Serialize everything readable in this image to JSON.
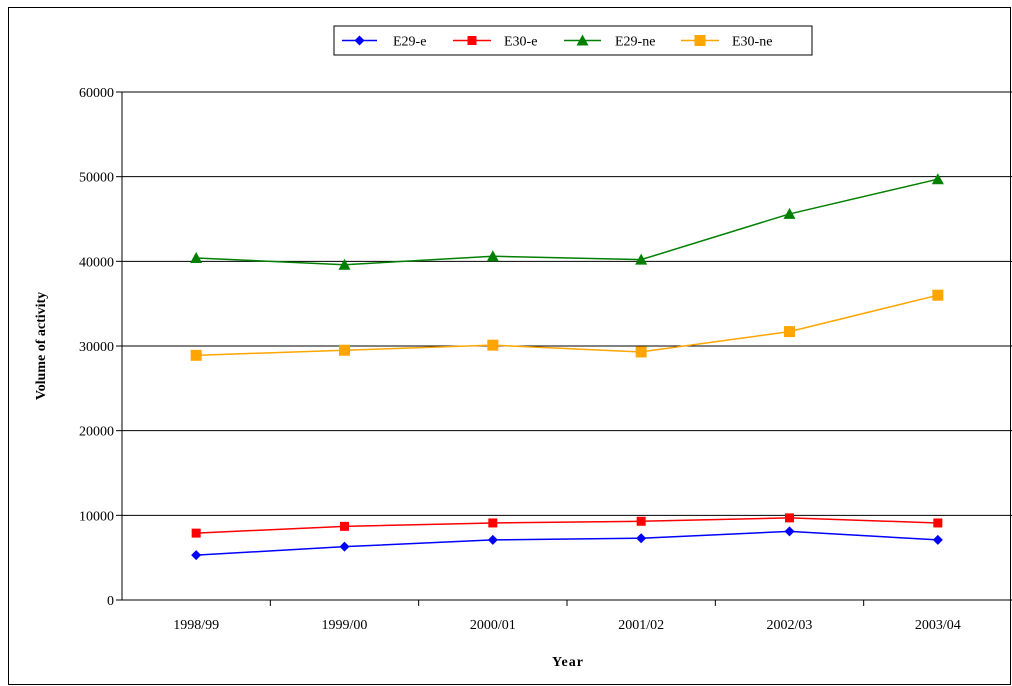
{
  "chart_data": {
    "type": "line",
    "title": "",
    "xlabel": "Year",
    "ylabel": "Volume of activity",
    "categories": [
      "1998/99",
      "1999/00",
      "2000/01",
      "2001/02",
      "2002/03",
      "2003/04"
    ],
    "ylim": [
      0,
      60000
    ],
    "yticks": [
      "0",
      "10000",
      "20000",
      "30000",
      "40000",
      "50000",
      "60000"
    ],
    "grid": true,
    "legend_position": "top-center",
    "series": [
      {
        "name": "E29-e",
        "color": "#0000FF",
        "marker": "diamond",
        "values": [
          5300,
          6300,
          7100,
          7300,
          8100,
          7100
        ]
      },
      {
        "name": "E30-e",
        "color": "#FF0000",
        "marker": "square",
        "values": [
          7900,
          8700,
          9100,
          9300,
          9700,
          9100
        ]
      },
      {
        "name": "E29-ne",
        "color": "#008000",
        "marker": "triangle",
        "values": [
          40400,
          39600,
          40600,
          40200,
          45600,
          49700
        ]
      },
      {
        "name": "E30-ne",
        "color": "#FFA500",
        "marker": "square",
        "values": [
          28900,
          29500,
          30100,
          29300,
          31700,
          36000
        ]
      }
    ]
  }
}
